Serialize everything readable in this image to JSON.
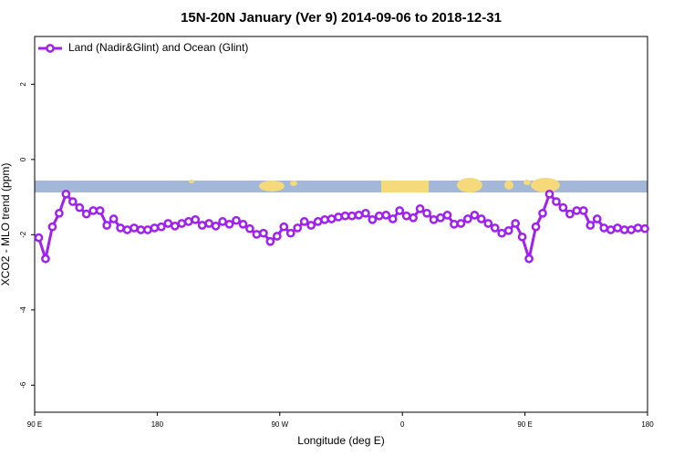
{
  "chart_data": {
    "type": "line",
    "title": "15N-20N January (Ver 9)   2014-09-06 to 2018-12-31",
    "x_label": "Longitude (deg E)",
    "y_label": "XCO2 - MLO trend (ppm)",
    "xlim": [
      90,
      540
    ],
    "xticks": [
      {
        "value": 90,
        "label": "90 E"
      },
      {
        "value": 180,
        "label": "180"
      },
      {
        "value": 270,
        "label": "90 W"
      },
      {
        "value": 360,
        "label": "0"
      },
      {
        "value": 450,
        "label": "90 E"
      },
      {
        "value": 540,
        "label": "180"
      }
    ],
    "ylim": [
      -6.72,
      3.27
    ],
    "yticks": [
      2,
      0,
      -2,
      -4,
      -6
    ],
    "legend_position": "upper left",
    "x": [
      93,
      98,
      103,
      108,
      113,
      118,
      123,
      128,
      133,
      138,
      143,
      148,
      153,
      158,
      163,
      168,
      173,
      178,
      183,
      188,
      193,
      198,
      203,
      208,
      213,
      218,
      223,
      228,
      233,
      238,
      243,
      248,
      253,
      258,
      263,
      268,
      273,
      278,
      283,
      288,
      293,
      298,
      303,
      308,
      313,
      318,
      323,
      328,
      333,
      338,
      343,
      348,
      353,
      358,
      363,
      368,
      373,
      378,
      383,
      388,
      393,
      398,
      403,
      408,
      413,
      418,
      423,
      428,
      433,
      438,
      443,
      448,
      453,
      458,
      463,
      468,
      473,
      478,
      483,
      488,
      493,
      498,
      503,
      508,
      513,
      518,
      523,
      528,
      533,
      538
    ],
    "series": [
      {
        "name": "Land (Nadir&Glint) and Ocean (Glint)",
        "color": "#a020f0",
        "values": [
          -2.08,
          -2.64,
          -1.79,
          -1.43,
          -0.92,
          -1.12,
          -1.28,
          -1.45,
          -1.36,
          -1.36,
          -1.75,
          -1.58,
          -1.82,
          -1.87,
          -1.82,
          -1.87,
          -1.87,
          -1.82,
          -1.79,
          -1.7,
          -1.77,
          -1.7,
          -1.65,
          -1.6,
          -1.75,
          -1.7,
          -1.77,
          -1.65,
          -1.72,
          -1.62,
          -1.72,
          -1.84,
          -1.99,
          -1.96,
          -2.18,
          -2.04,
          -1.79,
          -1.96,
          -1.82,
          -1.65,
          -1.75,
          -1.65,
          -1.6,
          -1.58,
          -1.53,
          -1.5,
          -1.5,
          -1.48,
          -1.43,
          -1.6,
          -1.5,
          -1.48,
          -1.58,
          -1.36,
          -1.5,
          -1.55,
          -1.31,
          -1.43,
          -1.6,
          -1.55,
          -1.48,
          -1.72,
          -1.7,
          -1.58,
          -1.48,
          -1.58,
          -1.7,
          -1.82,
          -1.96,
          -1.89,
          -1.7,
          -2.06,
          -2.64,
          -1.79,
          -1.43,
          -0.92,
          -1.12,
          -1.28,
          -1.45,
          -1.36,
          -1.36,
          -1.75,
          -1.58,
          -1.82,
          -1.87,
          -1.82,
          -1.87,
          -1.87,
          -1.82,
          -1.84
        ]
      }
    ]
  }
}
